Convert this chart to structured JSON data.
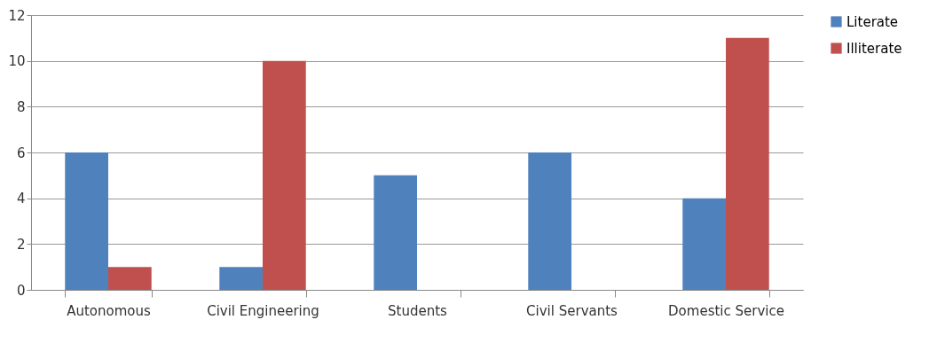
{
  "chart_data": {
    "type": "bar",
    "categories": [
      "Autonomous",
      "Civil Engineering",
      "Students",
      "Civil Servants",
      "Domestic Service"
    ],
    "series": [
      {
        "name": "Literate",
        "color": "#4f81bd",
        "values": [
          6,
          1,
          5,
          6,
          4
        ]
      },
      {
        "name": "Illiterate",
        "color": "#c0504d",
        "values": [
          1,
          10,
          0,
          0,
          11
        ]
      }
    ],
    "ylim": [
      0,
      12
    ],
    "yticks": [
      0,
      2,
      4,
      6,
      8,
      10,
      12
    ],
    "grid": "y",
    "legend": "right"
  }
}
